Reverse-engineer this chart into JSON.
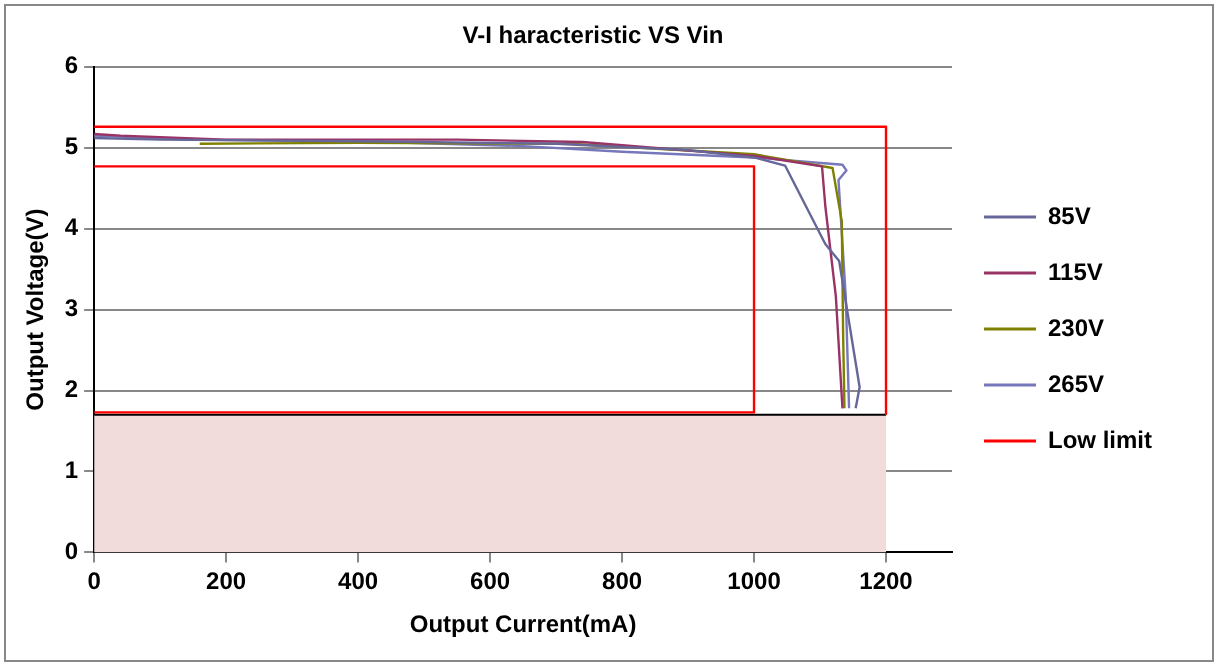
{
  "chart_data": {
    "type": "line",
    "title": "V-I haracteristic VS Vin",
    "xlabel": "Output Current(mA)",
    "ylabel": "Output Voltage(V)",
    "xlim": [
      0,
      1300
    ],
    "xticks": [
      0,
      200,
      400,
      600,
      800,
      1000,
      1200
    ],
    "ylim": [
      0,
      6
    ],
    "yticks": [
      0,
      1,
      2,
      3,
      4,
      5,
      6
    ],
    "grid": "y",
    "legend": "right",
    "marker": "none",
    "line_style": "solid",
    "series": [
      {
        "name": "85V",
        "color": "#666699",
        "x": [
          0,
          100,
          400,
          700,
          900,
          1000,
          1047,
          1108,
          1129,
          1160,
          1154
        ],
        "values": [
          5.12,
          5.1,
          5.08,
          5.05,
          4.97,
          4.88,
          4.78,
          3.81,
          3.6,
          2.04,
          1.78
        ]
      },
      {
        "name": "115V",
        "color": "#993366",
        "x": [
          0,
          40,
          200,
          550,
          740,
          1000,
          1103,
          1108,
          1124,
          1134
        ],
        "values": [
          5.17,
          5.15,
          5.1,
          5.1,
          5.07,
          4.9,
          4.77,
          4.28,
          3.16,
          1.78
        ]
      },
      {
        "name": "230V",
        "color": "#808000",
        "x": [
          160,
          400,
          720,
          1000,
          1119,
          1133,
          1135,
          1137
        ],
        "values": [
          5.05,
          5.06,
          5.05,
          4.92,
          4.75,
          4.09,
          2.69,
          1.78
        ]
      },
      {
        "name": "265V",
        "color": "#7777bb",
        "x": [
          0,
          150,
          400,
          650,
          800,
          1000,
          1134,
          1140,
          1128,
          1139,
          1144
        ],
        "values": [
          5.15,
          5.1,
          5.08,
          5.02,
          4.95,
          4.88,
          4.79,
          4.72,
          4.6,
          3.16,
          1.78
        ]
      },
      {
        "name": "Low limit",
        "color": "#ff0000",
        "x": [
          0,
          1200,
          1200,
          null,
          0,
          1000,
          1000,
          0
        ],
        "values": [
          5.26,
          5.26,
          1.71,
          null,
          4.77,
          4.77,
          1.73,
          1.73
        ]
      },
      {
        "type": "area",
        "color": "#f2dcdb",
        "x": [
          0,
          1200
        ],
        "values": [
          1.7,
          1.7
        ]
      }
    ]
  }
}
